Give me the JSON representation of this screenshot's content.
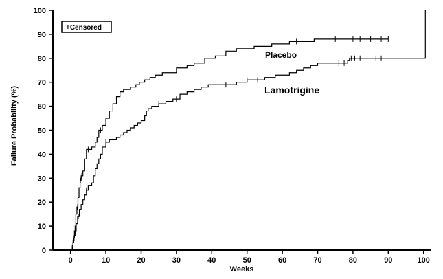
{
  "chart_data": {
    "type": "line",
    "step": true,
    "title": "",
    "xlabel": "Weeks",
    "ylabel": "Failure Probability (%)",
    "xlim": [
      -5,
      102
    ],
    "ylim": [
      0,
      100
    ],
    "xticks": [
      0,
      10,
      20,
      30,
      40,
      50,
      60,
      70,
      80,
      90,
      100
    ],
    "yticks": [
      0,
      10,
      20,
      30,
      40,
      50,
      60,
      70,
      80,
      90,
      100
    ],
    "grid": false,
    "legend": {
      "position": "top-left",
      "text": "+Censored"
    },
    "series": [
      {
        "name": "Placebo",
        "color": "#000000",
        "points": [
          [
            0.3,
            0
          ],
          [
            0.5,
            1
          ],
          [
            0.7,
            3
          ],
          [
            0.9,
            5
          ],
          [
            1.1,
            8
          ],
          [
            1.3,
            10
          ],
          [
            1.5,
            15
          ],
          [
            1.8,
            18
          ],
          [
            2.1,
            22
          ],
          [
            2.4,
            26
          ],
          [
            2.7,
            29
          ],
          [
            3.0,
            31
          ],
          [
            3.5,
            33
          ],
          [
            4.0,
            38
          ],
          [
            4.5,
            42
          ],
          [
            5.0,
            42
          ],
          [
            6.0,
            43
          ],
          [
            7.0,
            45
          ],
          [
            7.5,
            47
          ],
          [
            8.0,
            50
          ],
          [
            9.0,
            52
          ],
          [
            10.0,
            55
          ],
          [
            11.0,
            58
          ],
          [
            12.0,
            61
          ],
          [
            13.0,
            64
          ],
          [
            14.0,
            66
          ],
          [
            15.0,
            67
          ],
          [
            17.0,
            68
          ],
          [
            18.5,
            69
          ],
          [
            19.5,
            70
          ],
          [
            21.0,
            71
          ],
          [
            22.5,
            72
          ],
          [
            24.0,
            73
          ],
          [
            26.0,
            74
          ],
          [
            28.0,
            74
          ],
          [
            30.0,
            76
          ],
          [
            33.0,
            77
          ],
          [
            35.0,
            78
          ],
          [
            38.0,
            80
          ],
          [
            41.0,
            81
          ],
          [
            44.0,
            83
          ],
          [
            47.0,
            84
          ],
          [
            52.0,
            85
          ],
          [
            57.0,
            86
          ],
          [
            62.0,
            87
          ],
          [
            66.0,
            87
          ],
          [
            69.0,
            88
          ],
          [
            78.0,
            88
          ],
          [
            90.0,
            88
          ]
        ],
        "censored_x": [
          2.0,
          2.8,
          3.2,
          5.0,
          8.5,
          64.0,
          75.0,
          80.0,
          82.0,
          85.0,
          88.0,
          90.0
        ]
      },
      {
        "name": "Lamotrigine",
        "color": "#000000",
        "points": [
          [
            0.3,
            0
          ],
          [
            0.5,
            2
          ],
          [
            0.7,
            4
          ],
          [
            1.0,
            6
          ],
          [
            1.3,
            8
          ],
          [
            1.6,
            11
          ],
          [
            2.0,
            14
          ],
          [
            2.5,
            17
          ],
          [
            3.0,
            19
          ],
          [
            3.5,
            21
          ],
          [
            4.0,
            23
          ],
          [
            4.5,
            25
          ],
          [
            5.0,
            27
          ],
          [
            6.0,
            28
          ],
          [
            6.5,
            31
          ],
          [
            7.0,
            34
          ],
          [
            7.5,
            36
          ],
          [
            8.0,
            38
          ],
          [
            8.5,
            40
          ],
          [
            9.0,
            43
          ],
          [
            10.0,
            45
          ],
          [
            11.0,
            46
          ],
          [
            12.0,
            46
          ],
          [
            13.0,
            47
          ],
          [
            14.0,
            48
          ],
          [
            15.0,
            49
          ],
          [
            16.0,
            50
          ],
          [
            17.0,
            51
          ],
          [
            18.0,
            52
          ],
          [
            19.0,
            53
          ],
          [
            20.0,
            54
          ],
          [
            21.0,
            56
          ],
          [
            21.5,
            58
          ],
          [
            22.0,
            59
          ],
          [
            23.0,
            60
          ],
          [
            25.0,
            61
          ],
          [
            27.0,
            62
          ],
          [
            29.0,
            63
          ],
          [
            31.0,
            65
          ],
          [
            33.0,
            66
          ],
          [
            35.0,
            67
          ],
          [
            37.0,
            68
          ],
          [
            39.0,
            69
          ],
          [
            45.0,
            69
          ],
          [
            47.0,
            70
          ],
          [
            50.0,
            71
          ],
          [
            52.0,
            71
          ],
          [
            55.0,
            72
          ],
          [
            58.0,
            73
          ],
          [
            62.0,
            74
          ],
          [
            64.0,
            75
          ],
          [
            66.0,
            76
          ],
          [
            68.0,
            77
          ],
          [
            70.0,
            78
          ],
          [
            75.0,
            78
          ],
          [
            77.0,
            78
          ],
          [
            78.5,
            79
          ],
          [
            79.0,
            80
          ],
          [
            100.5,
            80
          ],
          [
            100.5,
            100
          ]
        ],
        "censored_x": [
          1.5,
          2.2,
          4.5,
          10.0,
          25.0,
          27.0,
          30.0,
          44.0,
          50.0,
          53.0,
          76.0,
          77.5,
          79.5,
          80.5,
          82.0,
          84.0,
          86.5,
          88.0
        ]
      }
    ]
  }
}
